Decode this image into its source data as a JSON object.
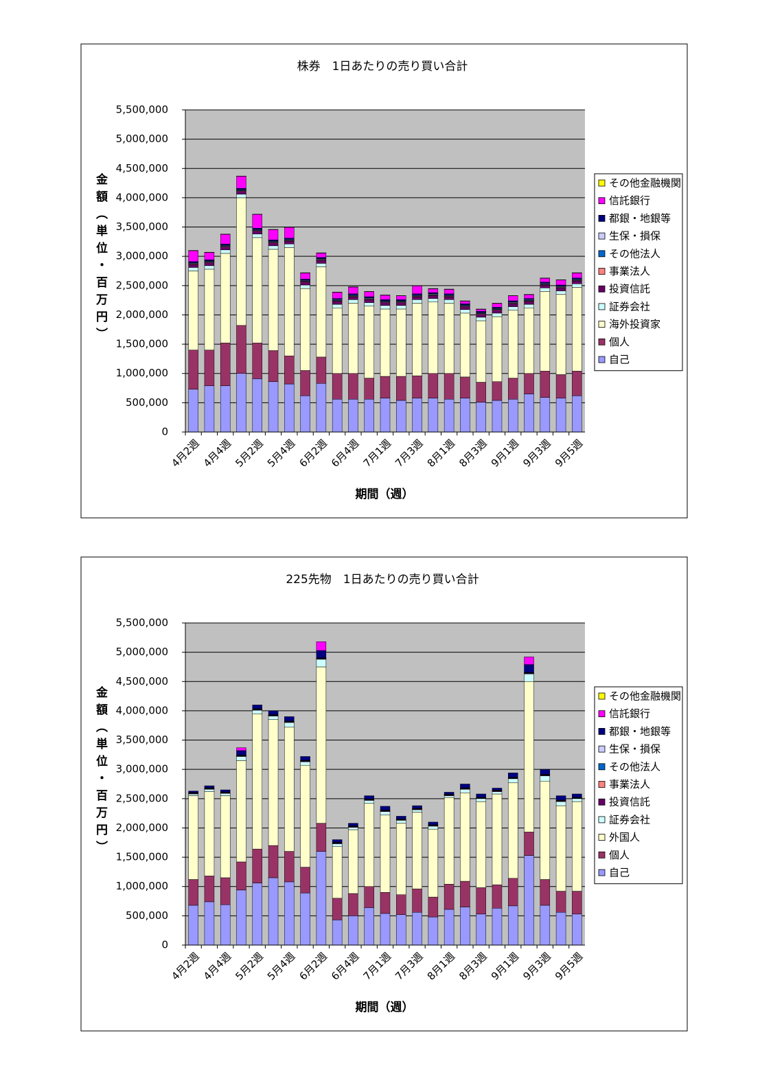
{
  "chart_data": [
    {
      "type": "bar",
      "stacked": true,
      "title": "株券　1日あたりの売り買い合計",
      "xlabel": "期間（週）",
      "ylabel": "金額（単位・百万円）",
      "categories": [
        "4月2週",
        null,
        "4月4週",
        null,
        "5月2週",
        null,
        "5月4週",
        null,
        "6月2週",
        null,
        "6月4週",
        null,
        "7月1週",
        null,
        "7月3週",
        null,
        "8月1週",
        null,
        "8月3週",
        null,
        "9月1週",
        null,
        "9月3週",
        null,
        "9月5週"
      ],
      "ylim": [
        0,
        5500000
      ],
      "yticks": [
        0,
        {
          "value": 500000,
          "label": "500,000"
        },
        {
          "value": 1000000,
          "label": "1,000,000"
        },
        {
          "value": 1500000,
          "label": "1,500,000"
        },
        {
          "value": 2000000,
          "label": "2,000,000"
        },
        {
          "value": 2500000,
          "label": "2,500,000"
        },
        {
          "value": 3000000,
          "label": "3,000,000"
        },
        {
          "value": 3500000,
          "label": "3,500,000"
        },
        {
          "value": 4000000,
          "label": "4,000,000"
        },
        {
          "value": 4500000,
          "label": "4,500,000"
        },
        {
          "value": 5000000,
          "label": "5,000,000"
        },
        {
          "value": 5500000,
          "label": "5,500,000"
        }
      ],
      "grid": true,
      "legend": "right",
      "series": [
        {
          "name": "自己",
          "color": "#9999ff",
          "values": [
            730000,
            790000,
            790000,
            1000000,
            910000,
            860000,
            820000,
            620000,
            830000,
            560000,
            560000,
            560000,
            580000,
            540000,
            580000,
            580000,
            560000,
            580000,
            510000,
            540000,
            560000,
            650000,
            590000,
            580000,
            620000
          ]
        },
        {
          "name": "個人",
          "color": "#993366",
          "values": [
            670000,
            610000,
            730000,
            820000,
            610000,
            530000,
            480000,
            430000,
            450000,
            440000,
            440000,
            360000,
            370000,
            410000,
            380000,
            420000,
            440000,
            360000,
            340000,
            320000,
            360000,
            350000,
            450000,
            400000,
            420000
          ]
        },
        {
          "name": "海外投資家",
          "color": "#ffffcc",
          "values": [
            1350000,
            1380000,
            1530000,
            2180000,
            1800000,
            1730000,
            1850000,
            1400000,
            1540000,
            1120000,
            1200000,
            1230000,
            1150000,
            1150000,
            1240000,
            1220000,
            1200000,
            1090000,
            1050000,
            1110000,
            1160000,
            1120000,
            1360000,
            1370000,
            1430000
          ]
        },
        {
          "name": "証券会社",
          "color": "#ccffff",
          "values": [
            60000,
            60000,
            60000,
            60000,
            60000,
            60000,
            60000,
            60000,
            60000,
            60000,
            60000,
            60000,
            60000,
            60000,
            60000,
            60000,
            60000,
            60000,
            60000,
            60000,
            60000,
            60000,
            60000,
            60000,
            60000
          ]
        },
        {
          "name": "投資信託",
          "color": "#660066",
          "values": [
            50000,
            50000,
            50000,
            50000,
            50000,
            50000,
            50000,
            50000,
            50000,
            50000,
            50000,
            50000,
            50000,
            50000,
            50000,
            50000,
            50000,
            50000,
            50000,
            50000,
            50000,
            50000,
            50000,
            50000,
            50000
          ]
        },
        {
          "name": "事業法人",
          "color": "#ff8080",
          "values": [
            10000,
            10000,
            10000,
            10000,
            10000,
            10000,
            10000,
            10000,
            10000,
            10000,
            10000,
            10000,
            10000,
            10000,
            10000,
            10000,
            10000,
            10000,
            10000,
            10000,
            10000,
            10000,
            10000,
            10000,
            10000
          ]
        },
        {
          "name": "その他法人",
          "color": "#0066cc",
          "values": [
            10000,
            10000,
            10000,
            10000,
            10000,
            10000,
            10000,
            10000,
            10000,
            10000,
            10000,
            10000,
            10000,
            10000,
            10000,
            10000,
            10000,
            10000,
            10000,
            10000,
            10000,
            10000,
            10000,
            10000,
            10000
          ]
        },
        {
          "name": "生保・損保",
          "color": "#ccccff",
          "values": [
            10000,
            10000,
            10000,
            10000,
            10000,
            10000,
            10000,
            10000,
            10000,
            10000,
            10000,
            10000,
            10000,
            10000,
            10000,
            10000,
            10000,
            10000,
            10000,
            10000,
            10000,
            10000,
            10000,
            10000,
            10000
          ]
        },
        {
          "name": "都銀・地銀等",
          "color": "#000080",
          "values": [
            20000,
            20000,
            20000,
            20000,
            20000,
            20000,
            20000,
            20000,
            20000,
            20000,
            20000,
            20000,
            20000,
            20000,
            20000,
            20000,
            20000,
            20000,
            20000,
            20000,
            20000,
            20000,
            20000,
            20000,
            20000
          ]
        },
        {
          "name": "信託銀行",
          "color": "#ff00ff",
          "values": [
            185000,
            125000,
            165000,
            205000,
            235000,
            175000,
            185000,
            105000,
            75000,
            105000,
            115000,
            85000,
            75000,
            65000,
            135000,
            65000,
            75000,
            45000,
            35000,
            65000,
            85000,
            65000,
            65000,
            85000,
            85000
          ]
        },
        {
          "name": "その他金融機関",
          "color": "#ffff00",
          "values": [
            5000,
            5000,
            5000,
            5000,
            5000,
            5000,
            5000,
            5000,
            5000,
            5000,
            5000,
            5000,
            5000,
            5000,
            5000,
            5000,
            5000,
            5000,
            5000,
            5000,
            5000,
            5000,
            5000,
            5000,
            5000
          ]
        }
      ]
    },
    {
      "type": "bar",
      "stacked": true,
      "title": "225先物　1日あたりの売り買い合計",
      "xlabel": "期間（週）",
      "ylabel": "金額（単位・百万円）",
      "categories": [
        "4月2週",
        null,
        "4月4週",
        null,
        "5月2週",
        null,
        "5月4週",
        null,
        "6月2週",
        null,
        "6月4週",
        null,
        "7月1週",
        null,
        "7月3週",
        null,
        "8月1週",
        null,
        "8月3週",
        null,
        "9月1週",
        null,
        "9月3週",
        null,
        "9月5週"
      ],
      "ylim": [
        0,
        5500000
      ],
      "yticks": [
        0,
        {
          "value": 500000,
          "label": "500,000"
        },
        {
          "value": 1000000,
          "label": "1,000,000"
        },
        {
          "value": 1500000,
          "label": "1,500,000"
        },
        {
          "value": 2000000,
          "label": "2,000,000"
        },
        {
          "value": 2500000,
          "label": "2,500,000"
        },
        {
          "value": 3000000,
          "label": "3,000,000"
        },
        {
          "value": 3500000,
          "label": "3,500,000"
        },
        {
          "value": 4000000,
          "label": "4,000,000"
        },
        {
          "value": 4500000,
          "label": "4,500,000"
        },
        {
          "value": 5000000,
          "label": "5,000,000"
        },
        {
          "value": 5500000,
          "label": "5,500,000"
        }
      ],
      "grid": true,
      "legend": "right",
      "series": [
        {
          "name": "自己",
          "color": "#9999ff",
          "values": [
            680000,
            740000,
            690000,
            940000,
            1060000,
            1150000,
            1080000,
            890000,
            1600000,
            430000,
            500000,
            640000,
            540000,
            520000,
            560000,
            480000,
            610000,
            650000,
            530000,
            630000,
            670000,
            1530000,
            680000,
            560000,
            530000
          ]
        },
        {
          "name": "個人",
          "color": "#993366",
          "values": [
            440000,
            440000,
            460000,
            480000,
            580000,
            550000,
            520000,
            440000,
            480000,
            370000,
            380000,
            360000,
            360000,
            340000,
            400000,
            340000,
            430000,
            440000,
            450000,
            400000,
            470000,
            400000,
            440000,
            360000,
            390000
          ]
        },
        {
          "name": "外国人",
          "color": "#ffffcc",
          "values": [
            1430000,
            1440000,
            1400000,
            1730000,
            2310000,
            2150000,
            2120000,
            1740000,
            2670000,
            880000,
            1090000,
            1420000,
            1320000,
            1220000,
            1310000,
            1160000,
            1480000,
            1510000,
            1470000,
            1550000,
            1630000,
            2570000,
            1680000,
            1460000,
            1530000
          ]
        },
        {
          "name": "証券会社",
          "color": "#ccffff",
          "values": [
            30000,
            40000,
            40000,
            70000,
            60000,
            60000,
            80000,
            60000,
            130000,
            50000,
            40000,
            50000,
            60000,
            50000,
            40000,
            50000,
            30000,
            60000,
            50000,
            40000,
            70000,
            130000,
            90000,
            70000,
            50000
          ]
        },
        {
          "name": "投資信託",
          "color": "#660066",
          "values": [
            10000,
            10000,
            10000,
            10000,
            10000,
            10000,
            10000,
            10000,
            10000,
            10000,
            10000,
            10000,
            10000,
            10000,
            10000,
            10000,
            10000,
            10000,
            10000,
            10000,
            10000,
            10000,
            10000,
            10000,
            10000
          ]
        },
        {
          "name": "事業法人",
          "color": "#ff8080",
          "values": [
            5000,
            5000,
            5000,
            5000,
            5000,
            5000,
            5000,
            5000,
            5000,
            5000,
            5000,
            5000,
            5000,
            5000,
            5000,
            5000,
            5000,
            5000,
            5000,
            5000,
            5000,
            5000,
            5000,
            5000,
            5000
          ]
        },
        {
          "name": "その他法人",
          "color": "#0066cc",
          "values": [
            5000,
            5000,
            5000,
            5000,
            5000,
            5000,
            5000,
            5000,
            5000,
            5000,
            5000,
            5000,
            5000,
            5000,
            5000,
            5000,
            5000,
            5000,
            5000,
            5000,
            5000,
            5000,
            5000,
            5000,
            5000
          ]
        },
        {
          "name": "生保・損保",
          "color": "#ccccff",
          "values": [
            5000,
            5000,
            5000,
            5000,
            5000,
            5000,
            5000,
            5000,
            5000,
            5000,
            5000,
            5000,
            5000,
            5000,
            5000,
            5000,
            5000,
            5000,
            5000,
            5000,
            5000,
            5000,
            5000,
            5000,
            5000
          ]
        },
        {
          "name": "都銀・地銀等",
          "color": "#000080",
          "values": [
            25000,
            35000,
            35000,
            75000,
            65000,
            65000,
            75000,
            65000,
            125000,
            45000,
            45000,
            55000,
            65000,
            45000,
            45000,
            45000,
            35000,
            65000,
            55000,
            35000,
            75000,
            135000,
            85000,
            75000,
            55000
          ]
        },
        {
          "name": "信託銀行",
          "color": "#ff00ff",
          "values": [
            0,
            0,
            0,
            50000,
            0,
            0,
            0,
            0,
            150000,
            0,
            0,
            0,
            0,
            0,
            0,
            0,
            0,
            0,
            0,
            0,
            0,
            130000,
            0,
            0,
            0
          ]
        },
        {
          "name": "その他金融機関",
          "color": "#ffff00",
          "values": [
            0,
            0,
            0,
            0,
            0,
            0,
            0,
            0,
            0,
            0,
            0,
            0,
            0,
            0,
            0,
            0,
            0,
            0,
            0,
            0,
            0,
            0,
            0,
            0,
            0
          ]
        }
      ]
    }
  ]
}
